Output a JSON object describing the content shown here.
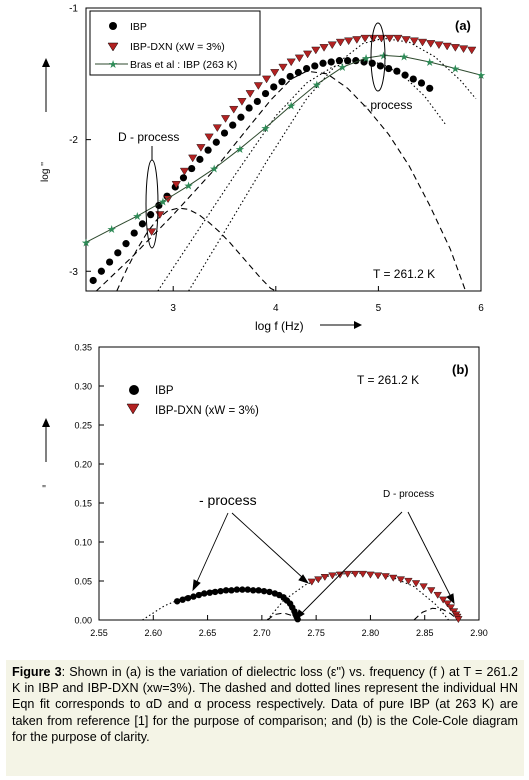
{
  "figure_label": "Figure 3",
  "caption": {
    "label": "Figure 3",
    "text": ": Shown in (a) is the variation of dielectric loss (ε\") vs. frequency (f ) at T = 261.2 K in IBP and IBP-DXN (xw=3%). The dashed and dotted lines represent the individual HN Eqn fit corresponds to αD and α process respectively. Data of pure IBP (at 263 K) are taken from reference [1] for the purpose of comparison; and (b) is the Cole-Cole diagram for the purpose of clarity."
  },
  "colors": {
    "ibp_marker": "#000000",
    "ibp_dxn_marker": "#b22222",
    "bras_line": "#2e4a2e",
    "bras_marker": "#2e8b57",
    "caption_bg": "#f4f4e6"
  },
  "chart_data": [
    {
      "id": "a",
      "type": "scatter",
      "panel_label": "(a)",
      "xlabel": "log f (Hz)",
      "ylabel": "log ''",
      "xlim": [
        2.15,
        6.0
      ],
      "ylim": [
        -3.15,
        -1.0
      ],
      "xticks": [
        "3",
        "4",
        "5",
        "6"
      ],
      "yticks": [
        "-1",
        "-2",
        "-3"
      ],
      "annotation_temp": "T = 261.2 K",
      "annotations": [
        "D - process",
        "- process"
      ],
      "legend": {
        "position": "top-left",
        "entries": [
          "IBP",
          "IBP-DXN (xW = 3%)",
          "Bras et al : IBP (263 K)"
        ]
      },
      "series": [
        {
          "name": "IBP",
          "marker": "circle",
          "x": [
            2.22,
            2.3,
            2.38,
            2.46,
            2.54,
            2.62,
            2.7,
            2.78,
            2.86,
            2.94,
            3.02,
            3.1,
            3.18,
            3.26,
            3.34,
            3.42,
            3.5,
            3.58,
            3.66,
            3.74,
            3.82,
            3.9,
            3.98,
            4.06,
            4.14,
            4.22,
            4.3,
            4.38,
            4.46,
            4.54,
            4.62,
            4.7,
            4.78,
            4.86,
            4.94,
            5.02,
            5.1,
            5.18,
            5.26,
            5.34,
            5.42,
            5.5
          ],
          "y": [
            -3.07,
            -3.0,
            -2.93,
            -2.86,
            -2.79,
            -2.71,
            -2.64,
            -2.57,
            -2.5,
            -2.43,
            -2.36,
            -2.29,
            -2.22,
            -2.15,
            -2.08,
            -2.02,
            -1.95,
            -1.89,
            -1.83,
            -1.76,
            -1.71,
            -1.65,
            -1.6,
            -1.56,
            -1.52,
            -1.49,
            -1.46,
            -1.44,
            -1.42,
            -1.41,
            -1.4,
            -1.4,
            -1.4,
            -1.41,
            -1.42,
            -1.44,
            -1.46,
            -1.48,
            -1.51,
            -1.54,
            -1.57,
            -1.61
          ]
        },
        {
          "name": "IBP-DXN (xW = 3%)",
          "marker": "triangle-down",
          "x": [
            2.79,
            2.87,
            2.95,
            3.03,
            3.11,
            3.19,
            3.27,
            3.35,
            3.43,
            3.51,
            3.59,
            3.67,
            3.75,
            3.83,
            3.91,
            3.99,
            4.07,
            4.15,
            4.23,
            4.31,
            4.39,
            4.47,
            4.55,
            4.63,
            4.71,
            4.79,
            4.87,
            4.95,
            5.03,
            5.11,
            5.19,
            5.27,
            5.35,
            5.43,
            5.51,
            5.59,
            5.67,
            5.75,
            5.83,
            5.91
          ],
          "y": [
            -2.7,
            -2.57,
            -2.45,
            -2.34,
            -2.24,
            -2.14,
            -2.06,
            -1.98,
            -1.91,
            -1.84,
            -1.77,
            -1.71,
            -1.65,
            -1.59,
            -1.54,
            -1.49,
            -1.45,
            -1.41,
            -1.38,
            -1.35,
            -1.32,
            -1.3,
            -1.28,
            -1.26,
            -1.25,
            -1.24,
            -1.23,
            -1.23,
            -1.23,
            -1.23,
            -1.23,
            -1.24,
            -1.25,
            -1.26,
            -1.27,
            -1.28,
            -1.29,
            -1.3,
            -1.31,
            -1.32
          ]
        },
        {
          "name": "Bras et al : IBP (263 K)",
          "marker": "star",
          "line": true,
          "x": [
            2.15,
            2.4,
            2.65,
            2.9,
            3.15,
            3.4,
            3.65,
            3.9,
            4.15,
            4.4,
            4.65,
            4.88,
            5.05,
            5.25,
            5.5,
            5.75,
            6.0
          ],
          "y": [
            -2.78,
            -2.68,
            -2.58,
            -2.47,
            -2.35,
            -2.22,
            -2.07,
            -1.91,
            -1.74,
            -1.58,
            -1.45,
            -1.38,
            -1.36,
            -1.37,
            -1.41,
            -1.46,
            -1.51
          ]
        }
      ],
      "fit_curves": [
        {
          "name": "dashed-D",
          "style": "dashed",
          "x": [
            2.45,
            2.55,
            2.65,
            2.75,
            2.85,
            2.95,
            3.05,
            3.15,
            3.25,
            3.35,
            3.45,
            3.55,
            3.65,
            3.75,
            3.85,
            3.95,
            4.0
          ],
          "y": [
            -3.15,
            -2.98,
            -2.83,
            -2.7,
            -2.6,
            -2.54,
            -2.52,
            -2.53,
            -2.57,
            -2.63,
            -2.7,
            -2.78,
            -2.87,
            -2.96,
            -3.05,
            -3.13,
            -3.15
          ]
        },
        {
          "name": "dashed-alpha",
          "style": "dashed",
          "x": [
            2.25,
            2.6,
            3.0,
            3.4,
            3.7,
            3.95,
            4.15,
            4.3,
            4.5,
            4.7,
            4.9,
            5.1,
            5.3,
            5.5,
            5.7,
            5.85
          ],
          "y": [
            -3.15,
            -2.89,
            -2.57,
            -2.23,
            -1.94,
            -1.7,
            -1.54,
            -1.48,
            -1.5,
            -1.61,
            -1.77,
            -1.96,
            -2.2,
            -2.5,
            -2.83,
            -3.15
          ]
        },
        {
          "name": "dotted-alpha",
          "style": "dotted",
          "x": [
            2.85,
            3.2,
            3.6,
            4.0,
            4.3,
            4.55,
            4.75,
            4.9,
            5.05,
            5.25,
            5.45,
            5.65
          ],
          "y": [
            -3.15,
            -2.74,
            -2.27,
            -1.82,
            -1.57,
            -1.45,
            -1.41,
            -1.4,
            -1.43,
            -1.52,
            -1.67,
            -1.88
          ]
        },
        {
          "name": "dotted-alpha-dxn",
          "style": "dotted",
          "x": [
            3.15,
            3.5,
            3.9,
            4.3,
            4.6,
            4.85,
            5.05,
            5.3,
            5.55,
            5.8,
            5.95
          ],
          "y": [
            -3.15,
            -2.7,
            -2.18,
            -1.69,
            -1.42,
            -1.27,
            -1.23,
            -1.26,
            -1.37,
            -1.55,
            -1.69
          ]
        }
      ]
    },
    {
      "id": "b",
      "type": "scatter",
      "panel_label": "(b)",
      "xlabel": "",
      "ylabel": "''",
      "xlim": [
        2.55,
        2.9
      ],
      "ylim": [
        0.0,
        0.35
      ],
      "xticks": [
        "2.55",
        "2.60",
        "2.65",
        "2.70",
        "2.75",
        "2.80",
        "2.85",
        "2.90"
      ],
      "yticks": [
        "0.00",
        "0.05",
        "0.10",
        "0.15",
        "0.20",
        "0.25",
        "0.30",
        "0.35"
      ],
      "annotation_temp": "T = 261.2 K",
      "annotations": [
        "- process",
        "D - process"
      ],
      "legend": {
        "position": "top-left",
        "entries": [
          "IBP",
          "IBP-DXN (xW = 3%)"
        ]
      },
      "series": [
        {
          "name": "IBP",
          "marker": "circle",
          "x": [
            2.622,
            2.627,
            2.632,
            2.637,
            2.642,
            2.647,
            2.652,
            2.657,
            2.662,
            2.667,
            2.672,
            2.677,
            2.682,
            2.687,
            2.692,
            2.697,
            2.702,
            2.707,
            2.712,
            2.716,
            2.72,
            2.723,
            2.726,
            2.728,
            2.73,
            2.731,
            2.732,
            2.733
          ],
          "y": [
            0.024,
            0.026,
            0.028,
            0.03,
            0.032,
            0.034,
            0.035,
            0.036,
            0.037,
            0.038,
            0.038,
            0.039,
            0.039,
            0.039,
            0.038,
            0.038,
            0.037,
            0.036,
            0.034,
            0.032,
            0.029,
            0.025,
            0.021,
            0.016,
            0.011,
            0.007,
            0.004,
            0.001
          ]
        },
        {
          "name": "IBP-DXN (xW = 3%)",
          "marker": "triangle-down",
          "x": [
            2.746,
            2.752,
            2.758,
            2.765,
            2.772,
            2.779,
            2.786,
            2.793,
            2.8,
            2.807,
            2.814,
            2.821,
            2.828,
            2.835,
            2.842,
            2.849,
            2.856,
            2.862,
            2.867,
            2.871,
            2.874,
            2.877,
            2.879,
            2.88,
            2.881
          ],
          "y": [
            0.049,
            0.052,
            0.055,
            0.057,
            0.058,
            0.059,
            0.059,
            0.059,
            0.058,
            0.057,
            0.056,
            0.054,
            0.052,
            0.05,
            0.047,
            0.043,
            0.038,
            0.032,
            0.026,
            0.021,
            0.016,
            0.011,
            0.007,
            0.004,
            0.001
          ]
        }
      ],
      "fit_curves": [
        {
          "name": "dotted-IBP-arc",
          "style": "dotted",
          "x": [
            2.59,
            2.61,
            2.63,
            2.65,
            2.67,
            2.69,
            2.71,
            2.725,
            2.733
          ],
          "y": [
            0.0,
            0.018,
            0.03,
            0.037,
            0.04,
            0.04,
            0.034,
            0.02,
            0.0
          ]
        },
        {
          "name": "dotted-DXN-arc",
          "style": "dotted",
          "x": [
            2.705,
            2.72,
            2.74,
            2.76,
            2.78,
            2.8,
            2.82,
            2.84,
            2.86,
            2.872
          ],
          "y": [
            0.0,
            0.025,
            0.045,
            0.056,
            0.06,
            0.06,
            0.055,
            0.043,
            0.02,
            0.0
          ]
        },
        {
          "name": "dashed-D-IBP",
          "style": "dashed",
          "x": [
            2.705,
            2.712,
            2.72,
            2.727,
            2.733
          ],
          "y": [
            0.0,
            0.007,
            0.009,
            0.006,
            0.0
          ]
        },
        {
          "name": "dashed-D-DXN",
          "style": "dashed",
          "x": [
            2.84,
            2.848,
            2.857,
            2.866,
            2.874,
            2.881
          ],
          "y": [
            0.0,
            0.01,
            0.015,
            0.014,
            0.008,
            0.0
          ]
        }
      ]
    }
  ]
}
